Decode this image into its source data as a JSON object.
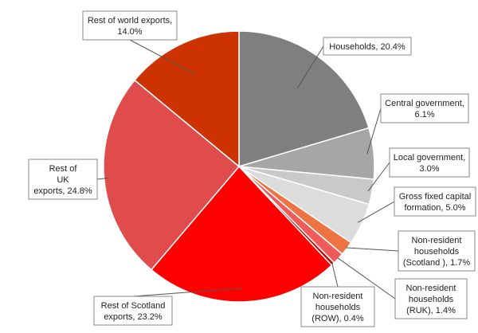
{
  "chart_data": {
    "type": "pie",
    "title": "",
    "slices": [
      {
        "label": "Households, 20.4%",
        "value": 20.4,
        "color": "#7f7f7f"
      },
      {
        "label": "Central government, 6.1%",
        "value": 6.1,
        "color": "#a6a6a6"
      },
      {
        "label": "Local government, 3.0%",
        "value": 3.0,
        "color": "#c9c9c9"
      },
      {
        "label": "Gross fixed capital formation, 5.0%",
        "value": 5.0,
        "color": "#dcdcdc"
      },
      {
        "label": "Non-resident households (Scotland ), 1.7%",
        "value": 1.7,
        "color": "#ed7442"
      },
      {
        "label": "Non-resident households (RUK), 1.4%",
        "value": 1.4,
        "color": "#ef5a5a"
      },
      {
        "label": "Non-resident households (ROW), 0.4%",
        "value": 0.4,
        "color": "#c00000"
      },
      {
        "label": "Rest of Scotland exports, 23.2%",
        "value": 23.2,
        "color": "#ff0000"
      },
      {
        "label": "Rest of UK exports, 24.8%",
        "value": 24.8,
        "color": "#e04b4b"
      },
      {
        "label": "Rest of world exports, 14.0%",
        "value": 14.0,
        "color": "#cc3300"
      }
    ],
    "label_lines": [
      [
        "Households, 20.4%"
      ],
      [
        "Central government,",
        "6.1%"
      ],
      [
        "Local government,",
        "3.0%"
      ],
      [
        "Gross fixed capital",
        "formation, 5.0%"
      ],
      [
        "Non-resident",
        "households",
        "(Scotland ), 1.7%"
      ],
      [
        "Non-resident",
        "households",
        "(RUK), 1.4%"
      ],
      [
        "Non-resident",
        "households",
        "(ROW), 0.4%"
      ],
      [
        "Rest of Scotland",
        "exports, 23.2%"
      ],
      [
        "Rest of",
        "UK",
        "exports, 24.8%"
      ],
      [
        "Rest of world exports,",
        "14.0%"
      ]
    ],
    "legend": "none",
    "grid": false
  }
}
